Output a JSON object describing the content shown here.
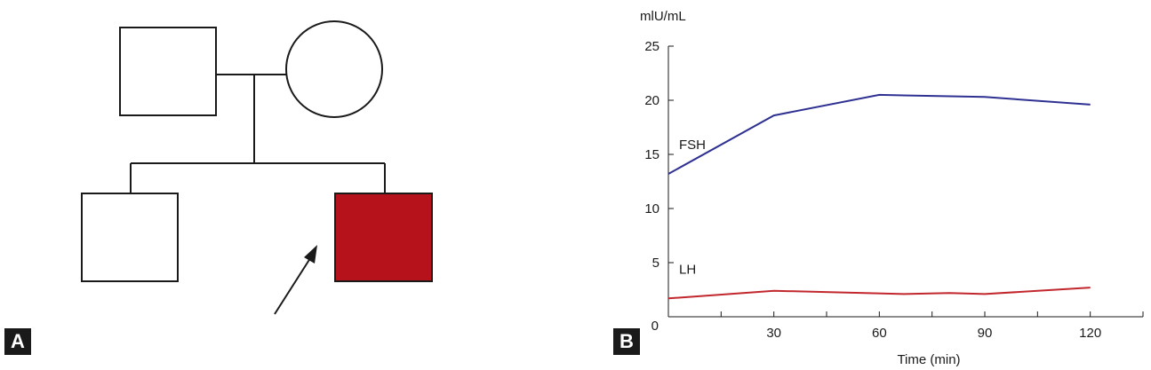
{
  "panels": {
    "a": "A",
    "b": "B"
  },
  "colors": {
    "affected": "#b5121b",
    "fsh": "#2e3192",
    "lh": "#c1272d",
    "line": "#1a1a1a"
  },
  "pedigree": {
    "individuals": [
      {
        "id": "father",
        "sex": "male",
        "affected": false,
        "generation": 1
      },
      {
        "id": "mother",
        "sex": "female",
        "affected": false,
        "generation": 1
      },
      {
        "id": "brother",
        "sex": "male",
        "affected": false,
        "generation": 2
      },
      {
        "id": "proband",
        "sex": "male",
        "affected": true,
        "generation": 2,
        "proband": true
      }
    ]
  },
  "chart_data": {
    "type": "line",
    "title": "",
    "xlabel": "Time (min)",
    "ylabel": "mlU/mL",
    "xlim": [
      0,
      135
    ],
    "ylim": [
      0,
      25
    ],
    "x_ticks": [
      30,
      60,
      90,
      120
    ],
    "y_ticks": [
      0,
      5,
      10,
      15,
      20,
      25
    ],
    "origin_label": "0",
    "series": [
      {
        "name": "FSH",
        "color": "#2e3192",
        "points": [
          [
            0,
            13.2
          ],
          [
            30,
            18.6
          ],
          [
            60,
            20.5
          ],
          [
            90,
            20.3
          ],
          [
            120,
            19.6
          ]
        ]
      },
      {
        "name": "LH",
        "color": "#c1272d",
        "points": [
          [
            0,
            1.7
          ],
          [
            30,
            2.4
          ],
          [
            67,
            2.1
          ],
          [
            80,
            2.2
          ],
          [
            90,
            2.1
          ],
          [
            120,
            2.7
          ]
        ]
      }
    ]
  }
}
